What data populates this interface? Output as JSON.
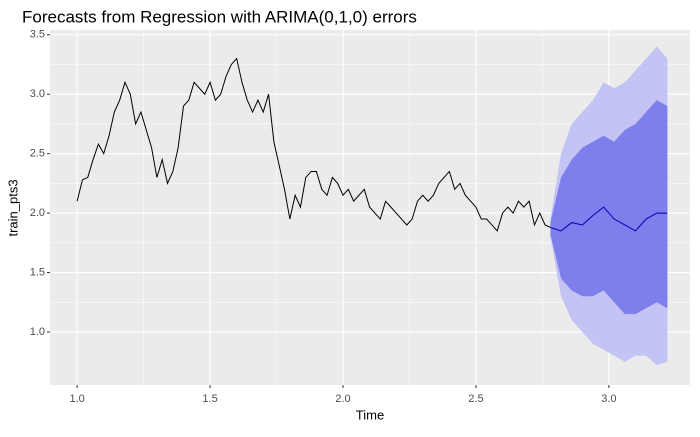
{
  "chart_data": {
    "type": "line",
    "title": "Forecasts from Regression with ARIMA(0,1,0) errors",
    "xlabel": "Time",
    "ylabel": "train_pts3",
    "xlim": [
      0.898,
      3.305
    ],
    "ylim": [
      0.554,
      3.54
    ],
    "xticks": [
      {
        "value": 1,
        "label": "1.0"
      },
      {
        "value": 1.5,
        "label": "1.5"
      },
      {
        "value": 2,
        "label": "2.0"
      },
      {
        "value": 2.5,
        "label": "2.5"
      },
      {
        "value": 3,
        "label": "3.0"
      }
    ],
    "yticks": [
      {
        "value": 1,
        "label": "1.0"
      },
      1.5,
      {
        "value": 2,
        "label": "2.0"
      },
      2.5,
      {
        "value": 3,
        "label": "3.0"
      },
      3.5
    ],
    "grid": true,
    "background": "#ebebeb",
    "bands": [
      {
        "color": "#c4c4f4",
        "x": [
          2.78,
          2.82,
          2.86,
          2.9,
          2.94,
          2.98,
          3.02,
          3.06,
          3.1,
          3.14,
          3.18,
          3.22
        ],
        "upper": [
          1.95,
          2.5,
          2.75,
          2.85,
          2.95,
          3.1,
          3.05,
          3.1,
          3.2,
          3.3,
          3.4,
          3.3
        ],
        "lower": [
          1.8,
          1.3,
          1.1,
          1.0,
          0.9,
          0.85,
          0.8,
          0.75,
          0.8,
          0.8,
          0.72,
          0.75
        ]
      },
      {
        "color": "#7e7eec",
        "x": [
          2.78,
          2.82,
          2.86,
          2.9,
          2.94,
          2.98,
          3.02,
          3.06,
          3.1,
          3.14,
          3.18,
          3.22
        ],
        "upper": [
          1.92,
          2.3,
          2.45,
          2.55,
          2.6,
          2.65,
          2.6,
          2.7,
          2.75,
          2.85,
          2.95,
          2.9
        ],
        "lower": [
          1.82,
          1.45,
          1.35,
          1.3,
          1.3,
          1.35,
          1.25,
          1.15,
          1.15,
          1.2,
          1.25,
          1.2
        ]
      }
    ],
    "series": [
      {
        "color": "#000000",
        "x": [
          1.0,
          1.02,
          1.04,
          1.06,
          1.08,
          1.1,
          1.12,
          1.14,
          1.16,
          1.18,
          1.2,
          1.22,
          1.24,
          1.26,
          1.28,
          1.3,
          1.32,
          1.34,
          1.36,
          1.38,
          1.4,
          1.42,
          1.44,
          1.46,
          1.48,
          1.5,
          1.52,
          1.54,
          1.56,
          1.58,
          1.6,
          1.62,
          1.64,
          1.66,
          1.68,
          1.7,
          1.72,
          1.74,
          1.76,
          1.78,
          1.8,
          1.82,
          1.84,
          1.86,
          1.88,
          1.9,
          1.92,
          1.94,
          1.96,
          1.98,
          2.0,
          2.02,
          2.04,
          2.06,
          2.08,
          2.1,
          2.12,
          2.14,
          2.16,
          2.18,
          2.2,
          2.22,
          2.24,
          2.26,
          2.28,
          2.3,
          2.32,
          2.34,
          2.36,
          2.38,
          2.4,
          2.42,
          2.44,
          2.46,
          2.48,
          2.5,
          2.52,
          2.54,
          2.56,
          2.58,
          2.6,
          2.62,
          2.64,
          2.66,
          2.68,
          2.7,
          2.72,
          2.74,
          2.76,
          2.78
        ],
        "values": [
          2.1,
          2.28,
          2.3,
          2.45,
          2.58,
          2.5,
          2.65,
          2.85,
          2.95,
          3.1,
          3.0,
          2.75,
          2.85,
          2.7,
          2.55,
          2.3,
          2.45,
          2.25,
          2.35,
          2.55,
          2.9,
          2.95,
          3.1,
          3.05,
          3.0,
          3.1,
          2.95,
          3.0,
          3.15,
          3.25,
          3.3,
          3.1,
          2.95,
          2.85,
          2.95,
          2.85,
          3.0,
          2.6,
          2.4,
          2.2,
          1.95,
          2.15,
          2.05,
          2.3,
          2.35,
          2.35,
          2.2,
          2.15,
          2.3,
          2.25,
          2.15,
          2.2,
          2.1,
          2.15,
          2.2,
          2.05,
          2.0,
          1.95,
          2.1,
          2.05,
          2.0,
          1.95,
          1.9,
          1.95,
          2.1,
          2.15,
          2.1,
          2.15,
          2.25,
          2.3,
          2.35,
          2.2,
          2.25,
          2.15,
          2.1,
          2.05,
          1.95,
          1.95,
          1.9,
          1.85,
          2.0,
          2.05,
          2.0,
          2.1,
          2.05,
          2.1,
          1.9,
          2.0,
          1.9,
          1.88
        ]
      },
      {
        "color": "#0000b0",
        "x": [
          2.78,
          2.82,
          2.86,
          2.9,
          2.94,
          2.98,
          3.02,
          3.06,
          3.1,
          3.14,
          3.18,
          3.22
        ],
        "values": [
          1.88,
          1.85,
          1.92,
          1.9,
          1.98,
          2.05,
          1.95,
          1.9,
          1.85,
          1.95,
          2.0,
          2.0
        ]
      }
    ]
  }
}
